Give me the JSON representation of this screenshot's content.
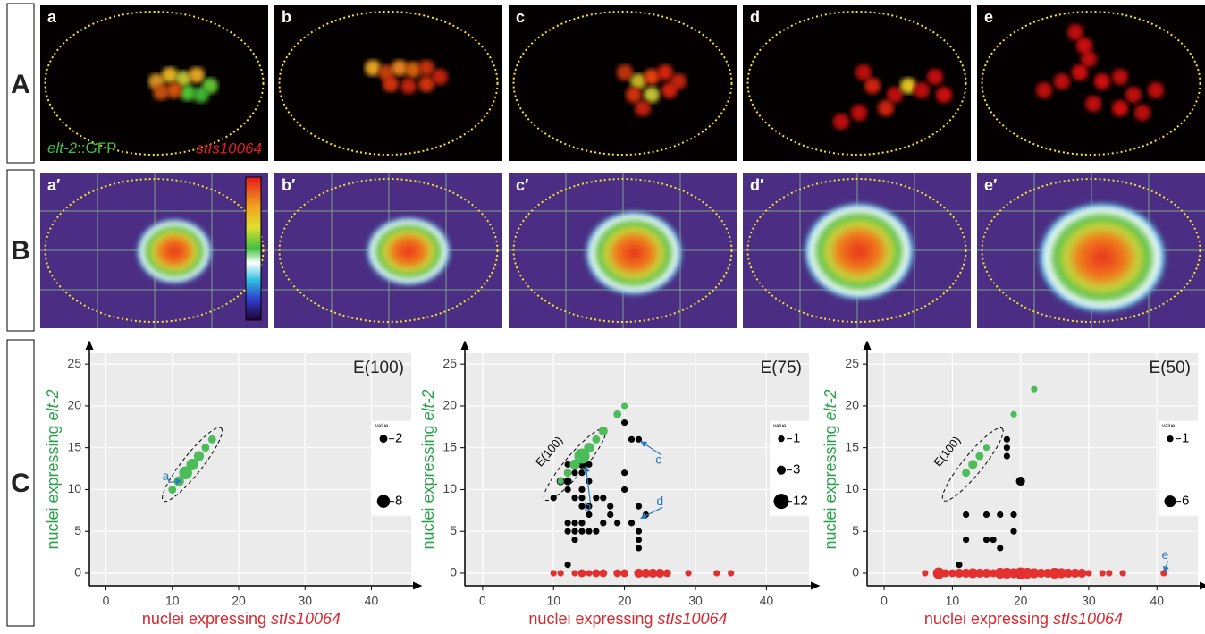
{
  "rows": [
    "A",
    "B",
    "C"
  ],
  "panels_A": [
    "a",
    "b",
    "c",
    "d",
    "e"
  ],
  "panels_B": [
    "a′",
    "b′",
    "c′",
    "d′",
    "e′"
  ],
  "gfp_label": [
    "elt-2",
    "::GFP"
  ],
  "red_label": "stIs10064",
  "chart_data": [
    {
      "type": "scatter",
      "title": "E(100)",
      "ylabel": [
        "nuclei expressing ",
        "elt-2"
      ],
      "xlabel": [
        "nuclei expressing ",
        "stIs10064"
      ],
      "xlim": [
        -2.5,
        46
      ],
      "ylim": [
        -1.5,
        26.3
      ],
      "xticks": [
        0,
        10,
        20,
        30,
        40
      ],
      "yticks": [
        0,
        5,
        10,
        15,
        20,
        25
      ],
      "grid": true,
      "series": [
        {
          "color": "#4cbb5a",
          "x": [
            10,
            11,
            12,
            13,
            14,
            15,
            16
          ],
          "values": [
            10,
            11,
            12,
            13,
            14,
            15,
            16
          ],
          "sizes": [
            2,
            4,
            8,
            6,
            4,
            2,
            2
          ]
        }
      ],
      "size_legend": {
        "title": "value",
        "values": [
          2,
          8
        ]
      },
      "annotations": [
        "a"
      ]
    },
    {
      "type": "scatter",
      "title": "E(75)",
      "ylabel": [
        "nuclei expressing ",
        "elt-2"
      ],
      "xlabel": [
        "nuclei expressing ",
        "stIs10064"
      ],
      "xlim": [
        -2.5,
        46
      ],
      "ylim": [
        -1.5,
        26.3
      ],
      "xticks": [
        0,
        10,
        20,
        30,
        40
      ],
      "yticks": [
        0,
        5,
        10,
        15,
        20,
        25
      ],
      "grid": true,
      "inset_label": "E(100)",
      "series": [
        {
          "color": "#000000",
          "x": [
            10,
            11,
            12,
            12,
            12,
            13,
            13,
            14,
            14,
            15,
            15,
            13,
            14,
            15,
            15,
            12,
            13,
            14,
            12,
            13,
            14,
            15,
            13,
            12,
            16,
            17,
            17,
            18,
            18,
            19,
            20,
            21,
            22,
            20,
            20,
            21,
            22,
            23,
            22,
            22,
            22,
            14,
            16,
            14
          ],
          "values": [
            9,
            11,
            10,
            11,
            13,
            12,
            13,
            13,
            12,
            13,
            11,
            9,
            10,
            8,
            7,
            6,
            6,
            6,
            5,
            5,
            5,
            5,
            4,
            1,
            9,
            9,
            6,
            7,
            8,
            6,
            18,
            16,
            16,
            12,
            10,
            6,
            8,
            7,
            5,
            4,
            3,
            9,
            5,
            8
          ],
          "sizes": [
            1,
            2,
            1,
            2,
            1,
            1,
            2,
            2,
            1,
            1,
            1,
            1,
            1,
            1,
            1,
            1,
            1,
            1,
            1,
            1,
            1,
            1,
            1,
            1,
            1,
            1,
            1,
            1,
            1,
            1,
            1,
            1,
            1,
            1,
            1,
            1,
            1,
            1,
            1,
            1,
            1,
            1,
            1,
            1
          ]
        },
        {
          "color": "#4cbb5a",
          "x": [
            11,
            12,
            13,
            14,
            15,
            16,
            17,
            19,
            20
          ],
          "values": [
            11,
            12,
            13,
            14,
            15,
            16,
            17,
            19,
            20
          ],
          "sizes": [
            1,
            2,
            4,
            12,
            4,
            2,
            3,
            2,
            1
          ]
        },
        {
          "color": "#e53030",
          "x": [
            10,
            11,
            13,
            14,
            15,
            16,
            17,
            19,
            20,
            22,
            23,
            24,
            25,
            26,
            29,
            33,
            35
          ],
          "values": [
            0,
            0,
            0,
            0,
            0,
            0,
            0,
            0,
            0,
            0,
            0,
            0,
            0,
            0,
            0,
            0,
            0
          ],
          "sizes": [
            1,
            1,
            1,
            2,
            1,
            2,
            2,
            2,
            2,
            3,
            3,
            3,
            3,
            2,
            1,
            1,
            1
          ]
        }
      ],
      "size_legend": {
        "title": "value",
        "values": [
          1,
          3,
          12
        ]
      },
      "annotations": [
        "b",
        "c",
        "d"
      ]
    },
    {
      "type": "scatter",
      "title": "E(50)",
      "ylabel": [
        "nuclei expressing ",
        "elt-2"
      ],
      "xlabel": [
        "nuclei expressing ",
        "stIs10064"
      ],
      "xlim": [
        -2.5,
        46
      ],
      "ylim": [
        -1.5,
        26.3
      ],
      "xticks": [
        0,
        10,
        20,
        30,
        40
      ],
      "yticks": [
        0,
        5,
        10,
        15,
        20,
        25
      ],
      "grid": true,
      "inset_label": "E(100)",
      "series": [
        {
          "color": "#000000",
          "x": [
            11,
            12,
            12,
            15,
            15,
            16,
            17,
            17,
            18,
            18,
            18,
            19,
            19,
            20
          ],
          "values": [
            1,
            7,
            4,
            7,
            4,
            4,
            7,
            3,
            14,
            15,
            16,
            5,
            7,
            11
          ],
          "sizes": [
            1,
            1,
            1,
            1,
            1,
            1,
            1,
            1,
            1,
            1,
            1,
            1,
            1,
            3
          ]
        },
        {
          "color": "#4cbb5a",
          "x": [
            12,
            13,
            14,
            15,
            19,
            22
          ],
          "values": [
            12,
            13,
            14,
            15,
            19,
            22
          ],
          "sizes": [
            2,
            3,
            2,
            1,
            1,
            1
          ]
        },
        {
          "color": "#e53030",
          "x": [
            6,
            8,
            9,
            10,
            11,
            12,
            13,
            14,
            15,
            16,
            17,
            18,
            19,
            20,
            21,
            22,
            23,
            24,
            25,
            26,
            27,
            28,
            29,
            30,
            32,
            33,
            35,
            41
          ],
          "values": [
            0,
            0,
            0,
            0,
            0,
            0,
            0,
            0,
            0,
            0,
            0,
            0,
            0,
            0,
            0,
            0,
            0,
            0,
            0,
            0,
            0,
            0,
            0,
            0,
            0,
            0,
            0,
            0
          ],
          "sizes": [
            1,
            6,
            2,
            2,
            3,
            3,
            4,
            3,
            3,
            2,
            5,
            5,
            4,
            6,
            5,
            4,
            3,
            3,
            5,
            4,
            3,
            3,
            3,
            1,
            1,
            1,
            1,
            1
          ]
        }
      ],
      "size_legend": {
        "title": "value",
        "values": [
          1,
          6
        ]
      },
      "annotations": [
        "e"
      ]
    }
  ]
}
